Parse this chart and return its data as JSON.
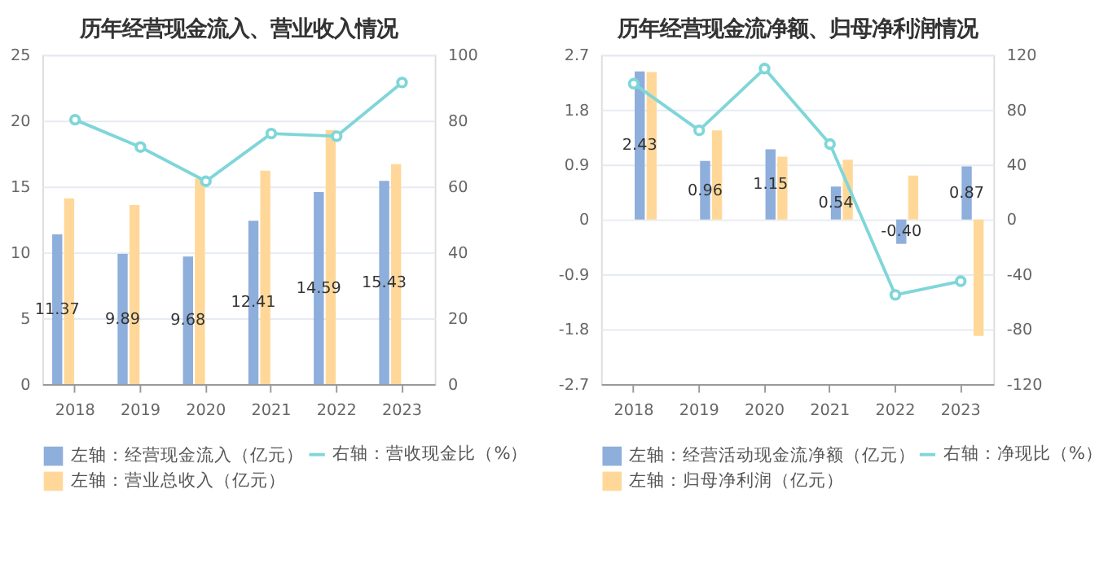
{
  "chart_data": [
    {
      "type": "bar",
      "title": "历年经营现金流入、营业收入情况",
      "categories": [
        "2018",
        "2019",
        "2020",
        "2021",
        "2022",
        "2023"
      ],
      "ylim": [
        0,
        25
      ],
      "yticks": [
        0,
        5,
        10,
        15,
        20,
        25
      ],
      "y2lim": [
        0,
        100
      ],
      "y2ticks": [
        0,
        20,
        40,
        60,
        80,
        100
      ],
      "grid": "y",
      "legend": "bottom",
      "series": [
        {
          "name": "左轴：经营现金流入（亿元）",
          "color": "#8eaedb",
          "values": [
            11.37,
            9.89,
            9.68,
            12.41,
            14.59,
            15.43
          ],
          "value_labels": [
            "11.37",
            "9.89",
            "9.68",
            "12.41",
            "14.59",
            "15.43"
          ]
        },
        {
          "name": "左轴：营业总收入（亿元）",
          "color": "#ffd899",
          "values": [
            14.1,
            13.6,
            15.6,
            16.2,
            19.3,
            16.7
          ]
        },
        {
          "name": "右轴：营收现金比（%）",
          "color": "#7fd6d9",
          "type": "line",
          "axis": "y2",
          "marker": "circle",
          "values": [
            80.3,
            72.0,
            61.6,
            76.1,
            75.3,
            91.6
          ]
        }
      ]
    },
    {
      "type": "bar",
      "title": "历年经营现金流净额、归母净利润情况",
      "categories": [
        "2018",
        "2019",
        "2020",
        "2021",
        "2022",
        "2023"
      ],
      "ylim": [
        -2.7,
        2.7
      ],
      "yticks": [
        -2.7,
        -1.8,
        -0.9,
        0,
        0.9,
        1.8,
        2.7
      ],
      "y2lim": [
        -120,
        120
      ],
      "y2ticks": [
        -120,
        -80,
        -40,
        0,
        40,
        80,
        120
      ],
      "grid": "y",
      "legend": "bottom",
      "series": [
        {
          "name": "左轴：经营活动现金流净额（亿元）",
          "color": "#8eaedb",
          "values": [
            2.43,
            0.96,
            1.15,
            0.54,
            -0.4,
            0.87
          ],
          "value_labels": [
            "2.43",
            "0.96",
            "1.15",
            "0.54",
            "-0.40",
            "0.87"
          ]
        },
        {
          "name": "左轴：归母净利润（亿元）",
          "color": "#ffd899",
          "values": [
            2.42,
            1.46,
            1.03,
            0.98,
            0.72,
            -1.91
          ]
        },
        {
          "name": "右轴：净现比（%）",
          "color": "#7fd6d9",
          "type": "line",
          "axis": "y2",
          "marker": "circle",
          "values": [
            99,
            65,
            110,
            55,
            -55,
            -45
          ]
        }
      ]
    }
  ]
}
